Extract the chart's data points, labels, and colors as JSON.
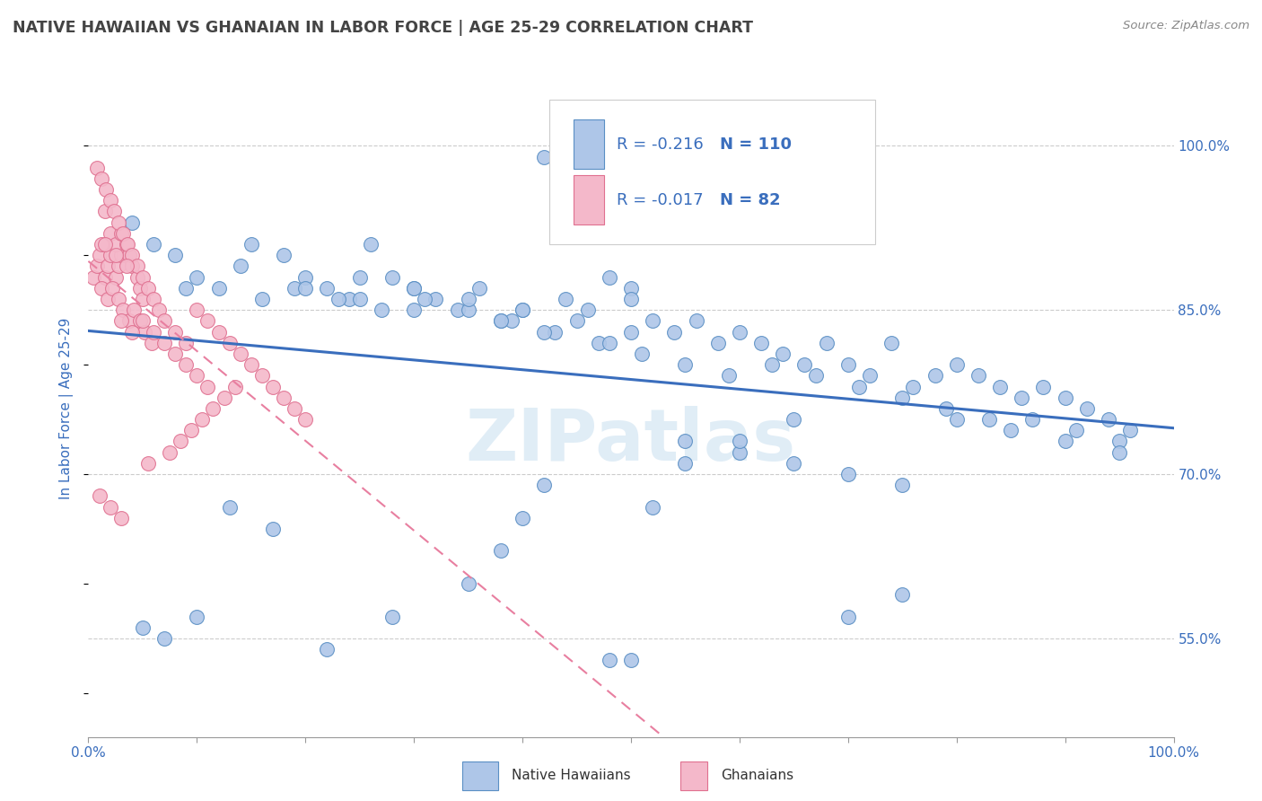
{
  "title": "NATIVE HAWAIIAN VS GHANAIAN IN LABOR FORCE | AGE 25-29 CORRELATION CHART",
  "source": "Source: ZipAtlas.com",
  "ylabel": "In Labor Force | Age 25-29",
  "xlim": [
    0.0,
    1.0
  ],
  "ylim": [
    0.46,
    1.06
  ],
  "y_tick_vals_right": [
    0.55,
    0.7,
    0.85,
    1.0
  ],
  "y_tick_labels_right": [
    "55.0%",
    "70.0%",
    "85.0%",
    "100.0%"
  ],
  "blue_fill": "#aec6e8",
  "blue_edge": "#5a8fc4",
  "pink_fill": "#f4b8ca",
  "pink_edge": "#e07090",
  "blue_line_color": "#3a6ebd",
  "pink_line_color": "#e87fa0",
  "axis_color": "#3a6ebd",
  "title_color": "#444444",
  "watermark": "ZIPatlas",
  "legend_R_blue": "-0.216",
  "legend_N_blue": "110",
  "legend_R_pink": "-0.017",
  "legend_N_pink": "82",
  "blue_x": [
    0.04,
    0.06,
    0.08,
    0.1,
    0.12,
    0.14,
    0.16,
    0.18,
    0.2,
    0.22,
    0.24,
    0.26,
    0.28,
    0.3,
    0.32,
    0.34,
    0.36,
    0.38,
    0.4,
    0.42,
    0.44,
    0.46,
    0.48,
    0.5,
    0.52,
    0.54,
    0.56,
    0.58,
    0.6,
    0.62,
    0.64,
    0.66,
    0.68,
    0.7,
    0.72,
    0.74,
    0.76,
    0.78,
    0.8,
    0.82,
    0.84,
    0.86,
    0.88,
    0.9,
    0.92,
    0.94,
    0.96,
    0.09,
    0.15,
    0.19,
    0.23,
    0.27,
    0.31,
    0.35,
    0.39,
    0.43,
    0.47,
    0.51,
    0.55,
    0.59,
    0.63,
    0.67,
    0.71,
    0.75,
    0.79,
    0.83,
    0.87,
    0.91,
    0.95,
    0.25,
    0.3,
    0.35,
    0.4,
    0.45,
    0.5,
    0.55,
    0.6,
    0.65,
    0.7,
    0.75,
    0.8,
    0.85,
    0.9,
    0.95,
    0.2,
    0.25,
    0.3,
    0.38,
    0.42,
    0.48,
    0.52,
    0.42,
    0.5,
    0.5,
    0.48,
    0.55,
    0.6,
    0.65,
    0.7,
    0.75,
    0.4,
    0.38,
    0.35,
    0.28,
    0.22,
    0.17,
    0.13,
    0.1,
    0.07,
    0.05
  ],
  "blue_y": [
    0.93,
    0.91,
    0.9,
    0.88,
    0.87,
    0.89,
    0.86,
    0.9,
    0.88,
    0.87,
    0.86,
    0.91,
    0.88,
    0.87,
    0.86,
    0.85,
    0.87,
    0.84,
    0.85,
    0.99,
    0.86,
    0.85,
    0.88,
    0.87,
    0.84,
    0.83,
    0.84,
    0.82,
    0.83,
    0.82,
    0.81,
    0.8,
    0.82,
    0.8,
    0.79,
    0.82,
    0.78,
    0.79,
    0.8,
    0.79,
    0.78,
    0.77,
    0.78,
    0.77,
    0.76,
    0.75,
    0.74,
    0.87,
    0.91,
    0.87,
    0.86,
    0.85,
    0.86,
    0.85,
    0.84,
    0.83,
    0.82,
    0.81,
    0.8,
    0.79,
    0.8,
    0.79,
    0.78,
    0.77,
    0.76,
    0.75,
    0.75,
    0.74,
    0.73,
    0.88,
    0.87,
    0.86,
    0.85,
    0.84,
    0.83,
    0.73,
    0.72,
    0.71,
    0.7,
    0.69,
    0.75,
    0.74,
    0.73,
    0.72,
    0.87,
    0.86,
    0.85,
    0.84,
    0.83,
    0.82,
    0.67,
    0.69,
    0.86,
    0.53,
    0.53,
    0.71,
    0.73,
    0.75,
    0.57,
    0.59,
    0.66,
    0.63,
    0.6,
    0.57,
    0.54,
    0.65,
    0.67,
    0.57,
    0.55,
    0.56
  ],
  "pink_x": [
    0.005,
    0.008,
    0.01,
    0.012,
    0.015,
    0.018,
    0.02,
    0.025,
    0.028,
    0.03,
    0.015,
    0.02,
    0.025,
    0.03,
    0.035,
    0.038,
    0.04,
    0.045,
    0.048,
    0.05,
    0.012,
    0.018,
    0.022,
    0.028,
    0.032,
    0.038,
    0.042,
    0.048,
    0.052,
    0.058,
    0.008,
    0.012,
    0.016,
    0.02,
    0.024,
    0.028,
    0.032,
    0.036,
    0.04,
    0.045,
    0.05,
    0.055,
    0.06,
    0.065,
    0.07,
    0.08,
    0.09,
    0.1,
    0.11,
    0.12,
    0.13,
    0.14,
    0.15,
    0.16,
    0.17,
    0.18,
    0.19,
    0.2,
    0.03,
    0.04,
    0.05,
    0.06,
    0.07,
    0.08,
    0.09,
    0.1,
    0.11,
    0.015,
    0.025,
    0.035,
    0.055,
    0.075,
    0.085,
    0.095,
    0.105,
    0.115,
    0.125,
    0.135,
    0.01,
    0.02,
    0.03
  ],
  "pink_y": [
    0.88,
    0.89,
    0.9,
    0.91,
    0.88,
    0.89,
    0.9,
    0.88,
    0.89,
    0.9,
    0.94,
    0.92,
    0.91,
    0.92,
    0.91,
    0.9,
    0.89,
    0.88,
    0.87,
    0.86,
    0.87,
    0.86,
    0.87,
    0.86,
    0.85,
    0.84,
    0.85,
    0.84,
    0.83,
    0.82,
    0.98,
    0.97,
    0.96,
    0.95,
    0.94,
    0.93,
    0.92,
    0.91,
    0.9,
    0.89,
    0.88,
    0.87,
    0.86,
    0.85,
    0.84,
    0.83,
    0.82,
    0.85,
    0.84,
    0.83,
    0.82,
    0.81,
    0.8,
    0.79,
    0.78,
    0.77,
    0.76,
    0.75,
    0.84,
    0.83,
    0.84,
    0.83,
    0.82,
    0.81,
    0.8,
    0.79,
    0.78,
    0.91,
    0.9,
    0.89,
    0.71,
    0.72,
    0.73,
    0.74,
    0.75,
    0.76,
    0.77,
    0.78,
    0.68,
    0.67,
    0.66
  ]
}
